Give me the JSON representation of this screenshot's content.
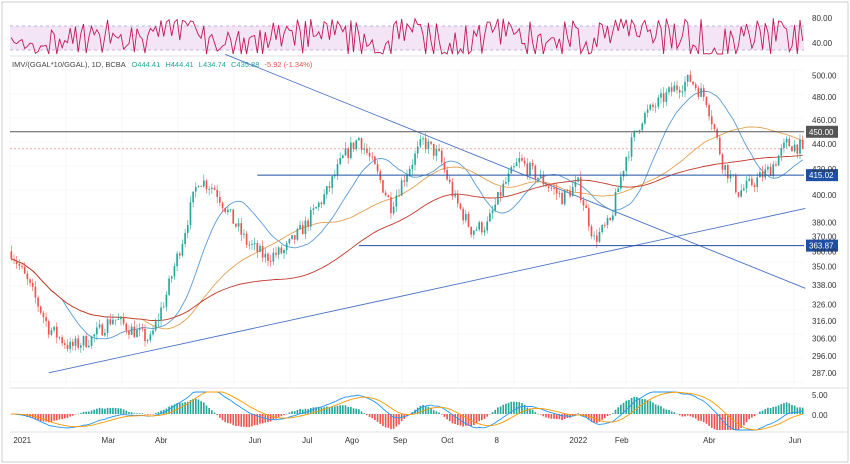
{
  "chart_data": {
    "type": "candlestick",
    "legend": {
      "symbol": "IMV/(GGAL*10/GGAL), 1D, BCBA",
      "open": "O444.41",
      "high": "H444.41",
      "low": "L434.74",
      "close": "C435.88",
      "change": "-5.92 (-1.34%)"
    },
    "x_labels": [
      "2021",
      "Mar",
      "Abr",
      "Jun",
      "Jul",
      "Ago",
      "Sep",
      "Oct",
      "8",
      "2022",
      "Feb",
      "Abr",
      "Jun"
    ],
    "y_scale": "log",
    "y_range": [
      280,
      505
    ],
    "y_ticks": [
      "500.00",
      "480.00",
      "460.00",
      "440.00",
      "420.00",
      "400.00",
      "380.00",
      "370.00",
      "360.00",
      "350.00",
      "338.00",
      "326.00",
      "316.00",
      "306.00",
      "296.00",
      "287.00"
    ],
    "price_levels": [
      {
        "value": 450.0,
        "label": "450.00",
        "color": "#555555"
      },
      {
        "value": 415.02,
        "label": "415.02",
        "color": "#1e4fa3"
      },
      {
        "value": 363.87,
        "label": "363.87",
        "color": "#1e4fa3"
      }
    ],
    "last_price": 435.88,
    "rsi": {
      "ticks": [
        "80.00",
        "40.00"
      ],
      "band": [
        30,
        70
      ]
    },
    "macd": {
      "ticks": [
        "5.00",
        "0.00"
      ]
    },
    "colors": {
      "up": "#26a69a",
      "down": "#ef5350",
      "ma_fast": "#5b9bd5",
      "ma_mid": "#e3a14f",
      "ma_slow": "#c0392b",
      "trend": "#4a74c9",
      "rsi_line": "#c2185b",
      "rsi_band": "#f3e5f5",
      "macd_line": "#2196f3",
      "signal_line": "#ff9800"
    },
    "price_path": [
      [
        0,
        360
      ],
      [
        6,
        340
      ],
      [
        14,
        312
      ],
      [
        22,
        301
      ],
      [
        30,
        306
      ],
      [
        38,
        318
      ],
      [
        45,
        311
      ],
      [
        52,
        305
      ],
      [
        58,
        332
      ],
      [
        64,
        368
      ],
      [
        70,
        412
      ],
      [
        76,
        405
      ],
      [
        82,
        384
      ],
      [
        88,
        366
      ],
      [
        95,
        356
      ],
      [
        102,
        360
      ],
      [
        110,
        378
      ],
      [
        118,
        402
      ],
      [
        124,
        428
      ],
      [
        130,
        445
      ],
      [
        136,
        420
      ],
      [
        142,
        392
      ],
      [
        148,
        418
      ],
      [
        154,
        442
      ],
      [
        160,
        430
      ],
      [
        166,
        396
      ],
      [
        172,
        375
      ],
      [
        178,
        378
      ],
      [
        184,
        406
      ],
      [
        190,
        426
      ],
      [
        198,
        412
      ],
      [
        206,
        398
      ],
      [
        212,
        408
      ],
      [
        218,
        368
      ],
      [
        224,
        380
      ],
      [
        230,
        430
      ],
      [
        236,
        462
      ],
      [
        242,
        475
      ],
      [
        248,
        488
      ],
      [
        254,
        496
      ],
      [
        260,
        478
      ],
      [
        266,
        425
      ],
      [
        272,
        402
      ],
      [
        278,
        410
      ],
      [
        284,
        420
      ],
      [
        290,
        440
      ],
      [
        296,
        437
      ]
    ]
  }
}
